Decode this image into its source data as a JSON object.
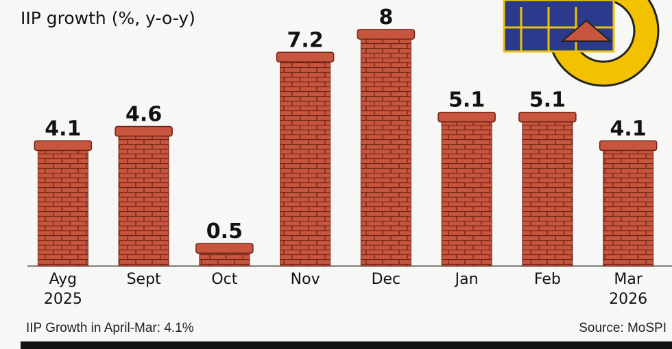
{
  "chart_data": {
    "type": "bar",
    "title": "IIP growth (%, y-o-y)",
    "categories": [
      "Ayg\n2025",
      "Sept",
      "Oct",
      "Nov",
      "Dec",
      "Jan",
      "Feb",
      "Mar\n2026"
    ],
    "values": [
      4.1,
      4.6,
      0.5,
      7.2,
      8,
      5.1,
      5.1,
      4.1
    ],
    "ylim": [
      0,
      8
    ],
    "color": "#c8553d",
    "note": "IIP Growth in April-Mar: 4.1%",
    "source": "Source: MoSPI"
  }
}
